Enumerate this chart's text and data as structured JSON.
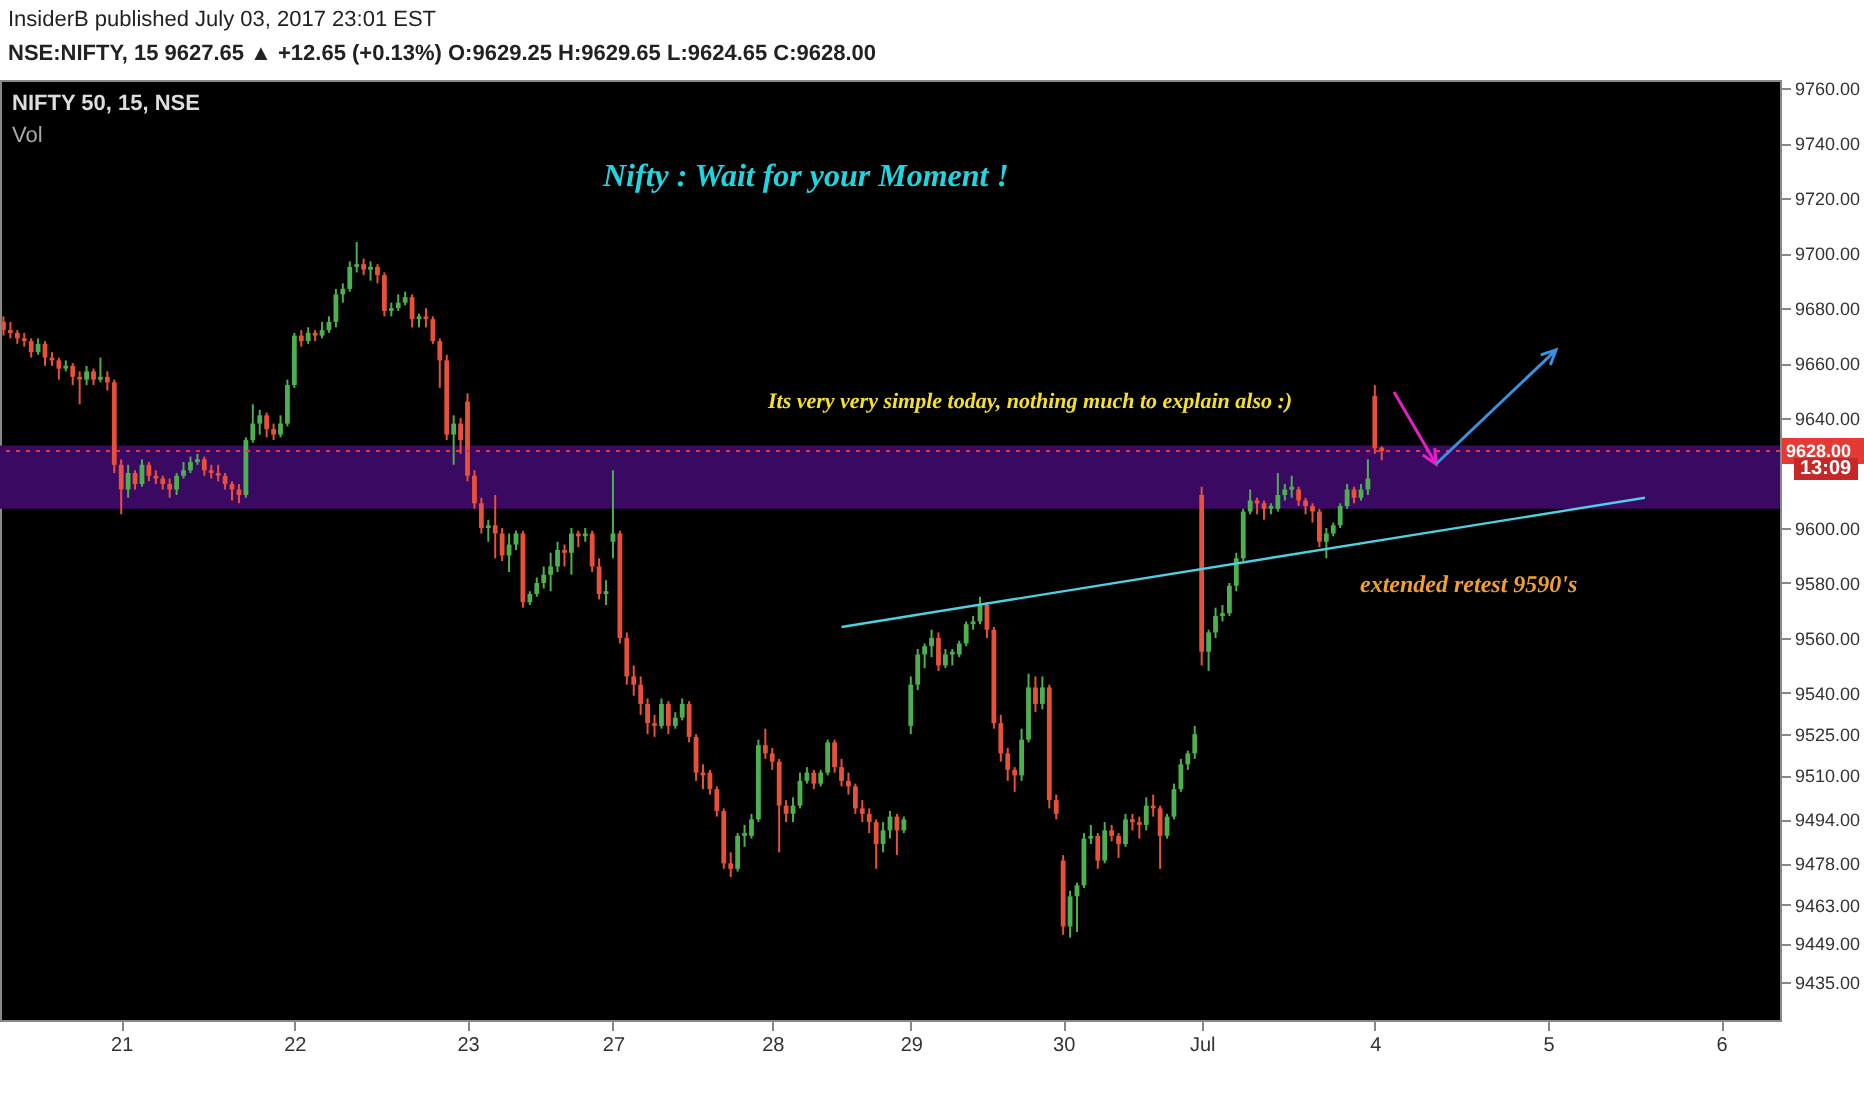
{
  "chart_data": {
    "type": "candlestick",
    "title": "Nifty : Wait for your Moment !",
    "annotations": [
      "InsiderB published July 03, 2017 23:01 EST",
      "NSE:NIFTY, 15  9627.65 ▲ +12.65 (+0.13%) O:9629.25 H:9629.65 L:9624.65 C:9628.00",
      "NIFTY 50, 15, NSE",
      "Vol",
      "Its very very simple today, nothing much to explain also :)",
      "extended retest 9590's",
      "13:09"
    ],
    "categories": [
      null,
      null,
      null,
      null,
      null,
      null,
      null,
      null,
      null,
      null,
      null,
      null,
      null,
      null,
      null,
      null,
      null,
      "21",
      null,
      null,
      null,
      null,
      null,
      null,
      null,
      null,
      null,
      null,
      null,
      null,
      null,
      null,
      null,
      null,
      null,
      null,
      null,
      null,
      null,
      null,
      null,
      null,
      "22",
      null,
      null,
      null,
      null,
      null,
      null,
      null,
      null,
      null,
      null,
      null,
      null,
      null,
      null,
      null,
      null,
      null,
      null,
      null,
      null,
      null,
      null,
      null,
      null,
      "23",
      null,
      null,
      null,
      null,
      null,
      null,
      null,
      null,
      null,
      null,
      null,
      null,
      null,
      null,
      null,
      null,
      null,
      null,
      null,
      null,
      "27",
      null,
      null,
      null,
      null,
      null,
      null,
      null,
      null,
      null,
      null,
      null,
      null,
      null,
      null,
      null,
      null,
      null,
      null,
      null,
      null,
      null,
      null,
      "28",
      null,
      null,
      null,
      null,
      null,
      null,
      null,
      null,
      null,
      null,
      null,
      null,
      null,
      null,
      null,
      null,
      null,
      null,
      null,
      "29",
      null,
      null,
      null,
      null,
      null,
      null,
      null,
      null,
      null,
      null,
      null,
      null,
      null,
      null,
      null,
      null,
      null,
      null,
      null,
      null,
      null,
      "30",
      null,
      null,
      null,
      null,
      null,
      null,
      null,
      null,
      null,
      null,
      null,
      null,
      null,
      null,
      null,
      null,
      null,
      null,
      null,
      "Jul",
      null,
      null,
      null,
      null,
      null,
      null,
      null,
      null,
      null,
      null,
      null,
      null,
      null,
      null,
      null,
      null,
      null,
      null,
      null,
      null,
      null,
      null,
      null,
      null,
      "4",
      null,
      null,
      null,
      null,
      null,
      null,
      null,
      null,
      null,
      null,
      null,
      null,
      null,
      null,
      null,
      null,
      null,
      null,
      null,
      null,
      null,
      null,
      null,
      null,
      "5",
      null,
      null,
      null,
      null,
      null,
      null,
      null,
      null,
      null,
      null,
      null,
      null,
      null,
      null,
      null,
      null,
      null,
      null,
      null,
      null,
      null,
      null,
      null,
      null,
      "6",
      null,
      null,
      null,
      null,
      null,
      null,
      null,
      null
    ],
    "ohlc": [
      [
        9675,
        9677,
        9670,
        9672
      ],
      [
        9672,
        9675,
        9669,
        9671
      ],
      [
        9671,
        9672,
        9667,
        9669
      ],
      [
        9669,
        9671,
        9666,
        9668
      ],
      [
        9668,
        9669,
        9662,
        9664
      ],
      [
        9664,
        9669,
        9663,
        9667
      ],
      [
        9667,
        9668,
        9659,
        9662
      ],
      [
        9662,
        9664,
        9659,
        9661
      ],
      [
        9661,
        9662,
        9654,
        9658
      ],
      [
        9658,
        9661,
        9657,
        9659
      ],
      [
        9659,
        9660,
        9652,
        9655
      ],
      [
        9655,
        9657,
        9645,
        9654
      ],
      [
        9654,
        9659,
        9652,
        9657
      ],
      [
        9657,
        9658,
        9652,
        9654
      ],
      [
        9654,
        9662,
        9653,
        9655
      ],
      [
        9655,
        9657,
        9650,
        9653
      ],
      [
        9653,
        9654,
        9620,
        9623
      ],
      [
        9623,
        9625,
        9605,
        9614
      ],
      [
        9614,
        9623,
        9611,
        9620
      ],
      [
        9620,
        9621,
        9614,
        9616
      ],
      [
        9616,
        9625,
        9615,
        9623
      ],
      [
        9623,
        9624,
        9617,
        9619
      ],
      [
        9619,
        9621,
        9616,
        9618
      ],
      [
        9618,
        9619,
        9614,
        9616
      ],
      [
        9616,
        9618,
        9611,
        9614
      ],
      [
        9614,
        9620,
        9612,
        9619
      ],
      [
        9619,
        9624,
        9618,
        9621
      ],
      [
        9621,
        9626,
        9620,
        9624
      ],
      [
        9624,
        9627,
        9623,
        9625
      ],
      [
        9625,
        9626,
        9619,
        9621
      ],
      [
        9621,
        9623,
        9618,
        9620
      ],
      [
        9620,
        9623,
        9617,
        9619
      ],
      [
        9619,
        9620,
        9614,
        9616
      ],
      [
        9616,
        9617,
        9610,
        9614
      ],
      [
        9614,
        9616,
        9609,
        9612
      ],
      [
        9612,
        9633,
        9611,
        9632
      ],
      [
        9632,
        9645,
        9631,
        9638
      ],
      [
        9638,
        9643,
        9634,
        9641
      ],
      [
        9641,
        9642,
        9633,
        9636
      ],
      [
        9636,
        9638,
        9632,
        9634
      ],
      [
        9634,
        9641,
        9633,
        9638
      ],
      [
        9638,
        9654,
        9637,
        9652
      ],
      [
        9652,
        9671,
        9651,
        9670
      ],
      [
        9670,
        9672,
        9666,
        9668
      ],
      [
        9668,
        9673,
        9667,
        9671
      ],
      [
        9671,
        9672,
        9668,
        9670
      ],
      [
        9670,
        9675,
        9669,
        9672
      ],
      [
        9672,
        9677,
        9671,
        9675
      ],
      [
        9675,
        9687,
        9673,
        9685
      ],
      [
        9685,
        9689,
        9682,
        9687
      ],
      [
        9687,
        9697,
        9686,
        9695
      ],
      [
        9695,
        9704,
        9693,
        9696
      ],
      [
        9696,
        9698,
        9692,
        9694
      ],
      [
        9694,
        9697,
        9690,
        9695
      ],
      [
        9695,
        9696,
        9689,
        9692
      ],
      [
        9692,
        9693,
        9677,
        9679
      ],
      [
        9679,
        9682,
        9677,
        9680
      ],
      [
        9680,
        9685,
        9679,
        9682
      ],
      [
        9682,
        9686,
        9681,
        9684
      ],
      [
        9684,
        9685,
        9673,
        9676
      ],
      [
        9676,
        9678,
        9673,
        9677
      ],
      [
        9677,
        9680,
        9673,
        9676
      ],
      [
        9676,
        9677,
        9667,
        9668
      ],
      [
        9668,
        9669,
        9651,
        9661
      ],
      [
        9661,
        9663,
        9632,
        9634
      ],
      [
        9634,
        9641,
        9623,
        9638
      ],
      [
        9638,
        9640,
        9627,
        9632
      ],
      [
        9646,
        9649,
        9617,
        9619
      ],
      [
        9619,
        9621,
        9607,
        9609
      ],
      [
        9609,
        9611,
        9598,
        9600
      ],
      [
        9600,
        9603,
        9595,
        9601
      ],
      [
        9601,
        9612,
        9589,
        9598
      ],
      [
        9598,
        9600,
        9588,
        9590
      ],
      [
        9590,
        9598,
        9584,
        9594
      ],
      [
        9594,
        9599,
        9592,
        9598
      ],
      [
        9598,
        9599,
        9571,
        9573
      ],
      [
        9573,
        9577,
        9572,
        9576
      ],
      [
        9576,
        9582,
        9575,
        9580
      ],
      [
        9580,
        9586,
        9578,
        9583
      ],
      [
        9583,
        9591,
        9577,
        9586
      ],
      [
        9586,
        9595,
        9584,
        9592
      ],
      [
        9592,
        9594,
        9586,
        9591
      ],
      [
        9591,
        9600,
        9583,
        9598
      ],
      [
        9598,
        9599,
        9593,
        9597
      ],
      [
        9597,
        9600,
        9595,
        9598
      ],
      [
        9598,
        9599,
        9584,
        9586
      ],
      [
        9586,
        9589,
        9574,
        9576
      ],
      [
        9576,
        9581,
        9572,
        9577
      ],
      [
        9595,
        9621,
        9589,
        9598
      ],
      [
        9598,
        9599,
        9558,
        9560
      ],
      [
        9560,
        9562,
        9543,
        9546
      ],
      [
        9546,
        9550,
        9539,
        9543
      ],
      [
        9543,
        9546,
        9532,
        9536
      ],
      [
        9536,
        9538,
        9525,
        9529
      ],
      [
        9529,
        9532,
        9524,
        9528
      ],
      [
        9528,
        9538,
        9527,
        9536
      ],
      [
        9536,
        9537,
        9525,
        9528
      ],
      [
        9528,
        9533,
        9527,
        9531
      ],
      [
        9531,
        9538,
        9530,
        9536
      ],
      [
        9536,
        9537,
        9522,
        9524
      ],
      [
        9524,
        9525,
        9508,
        9511
      ],
      [
        9511,
        9514,
        9505,
        9510
      ],
      [
        9511,
        9512,
        9503,
        9505
      ],
      [
        9505,
        9506,
        9495,
        9497
      ],
      [
        9497,
        9498,
        9476,
        9478
      ],
      [
        9478,
        9482,
        9473,
        9476
      ],
      [
        9476,
        9489,
        9475,
        9488
      ],
      [
        9488,
        9492,
        9484,
        9489
      ],
      [
        9488,
        9496,
        9487,
        9494
      ],
      [
        9494,
        9523,
        9493,
        9521
      ],
      [
        9521,
        9527,
        9516,
        9518
      ],
      [
        9518,
        9520,
        9512,
        9515
      ],
      [
        9515,
        9516,
        9482,
        9499
      ],
      [
        9499,
        9501,
        9493,
        9496
      ],
      [
        9496,
        9502,
        9493,
        9499
      ],
      [
        9499,
        9511,
        9498,
        9508
      ],
      [
        9508,
        9513,
        9507,
        9511
      ],
      [
        9511,
        9512,
        9505,
        9507
      ],
      [
        9507,
        9512,
        9506,
        9511
      ],
      [
        9511,
        9523,
        9510,
        9522
      ],
      [
        9522,
        9523,
        9511,
        9513
      ],
      [
        9513,
        9516,
        9506,
        9508
      ],
      [
        9508,
        9511,
        9503,
        9506
      ],
      [
        9506,
        9507,
        9496,
        9498
      ],
      [
        9498,
        9501,
        9493,
        9496
      ],
      [
        9496,
        9498,
        9489,
        9493
      ],
      [
        9493,
        9494,
        9476,
        9485
      ],
      [
        9485,
        9493,
        9482,
        9490
      ],
      [
        9490,
        9497,
        9487,
        9495
      ],
      [
        9495,
        9496,
        9481,
        9490
      ],
      [
        9490,
        9495,
        9489,
        9494
      ],
      [
        9528,
        9546,
        9525,
        9543
      ],
      [
        9543,
        9556,
        9541,
        9554
      ],
      [
        9554,
        9558,
        9549,
        9557
      ],
      [
        9557,
        9563,
        9553,
        9560
      ],
      [
        9560,
        9562,
        9548,
        9550
      ],
      [
        9550,
        9556,
        9549,
        9554
      ],
      [
        9554,
        9556,
        9550,
        9555
      ],
      [
        9554,
        9559,
        9553,
        9558
      ],
      [
        9558,
        9566,
        9557,
        9565
      ],
      [
        9565,
        9568,
        9563,
        9566
      ],
      [
        9566,
        9575,
        9565,
        9572
      ],
      [
        9572,
        9573,
        9560,
        9563
      ],
      [
        9563,
        9564,
        9527,
        9529
      ],
      [
        9529,
        9532,
        9515,
        9518
      ],
      [
        9518,
        9520,
        9508,
        9512
      ],
      [
        9512,
        9513,
        9504,
        9510
      ],
      [
        9510,
        9527,
        9508,
        9523
      ],
      [
        9523,
        9547,
        9522,
        9542
      ],
      [
        9542,
        9546,
        9533,
        9536
      ],
      [
        9536,
        9546,
        9534,
        9542
      ],
      [
        9542,
        9543,
        9498,
        9501
      ],
      [
        9501,
        9503,
        9494,
        9496
      ],
      [
        9479,
        9481,
        9452,
        9455
      ],
      [
        9455,
        9468,
        9451,
        9466
      ],
      [
        9466,
        9471,
        9453,
        9470
      ],
      [
        9470,
        9489,
        9469,
        9487
      ],
      [
        9487,
        9492,
        9485,
        9488
      ],
      [
        9488,
        9489,
        9476,
        9479
      ],
      [
        9479,
        9493,
        9478,
        9490
      ],
      [
        9490,
        9492,
        9486,
        9488
      ],
      [
        9488,
        9489,
        9480,
        9485
      ],
      [
        9485,
        9496,
        9484,
        9494
      ],
      [
        9494,
        9496,
        9490,
        9493
      ],
      [
        9493,
        9495,
        9487,
        9492
      ],
      [
        9492,
        9502,
        9490,
        9499
      ],
      [
        9499,
        9503,
        9495,
        9498
      ],
      [
        9498,
        9499,
        9476,
        9488
      ],
      [
        9488,
        9496,
        9487,
        9495
      ],
      [
        9495,
        9507,
        9494,
        9505
      ],
      [
        9505,
        9516,
        9504,
        9514
      ],
      [
        9514,
        9519,
        9512,
        9518
      ],
      [
        9518,
        9528,
        9516,
        9525
      ],
      [
        9612,
        9615,
        9550,
        9555
      ],
      [
        9555,
        9563,
        9548,
        9562
      ],
      [
        9562,
        9571,
        9560,
        9568
      ],
      [
        9568,
        9572,
        9566,
        9569
      ],
      [
        9569,
        9580,
        9568,
        9579
      ],
      [
        9579,
        9591,
        9577,
        9589
      ],
      [
        9589,
        9607,
        9588,
        9606
      ],
      [
        9606,
        9614,
        9605,
        9610
      ],
      [
        9610,
        9611,
        9605,
        9609
      ],
      [
        9609,
        9610,
        9603,
        9607
      ],
      [
        9607,
        9609,
        9605,
        9608
      ],
      [
        9607,
        9620,
        9606,
        9612
      ],
      [
        9612,
        9616,
        9610,
        9614
      ],
      [
        9614,
        9619,
        9611,
        9615
      ],
      [
        9614,
        9615,
        9608,
        9610
      ],
      [
        9610,
        9611,
        9605,
        9608
      ],
      [
        9608,
        9609,
        9602,
        9606
      ],
      [
        9606,
        9607,
        9593,
        9595
      ],
      [
        9595,
        9600,
        9589,
        9598
      ],
      [
        9598,
        9602,
        9597,
        9601
      ],
      [
        9601,
        9609,
        9600,
        9608
      ],
      [
        9608,
        9616,
        9607,
        9614
      ],
      [
        9614,
        9615,
        9609,
        9611
      ],
      [
        9611,
        9616,
        9610,
        9614
      ],
      [
        9614,
        9625,
        9612,
        9618
      ],
      [
        9648,
        9652,
        9627,
        9629
      ],
      [
        9629.25,
        9629.65,
        9624.65,
        9628
      ],
      null,
      null,
      null,
      null,
      null,
      null,
      null,
      null,
      null,
      null,
      null,
      null,
      null,
      null,
      null,
      null,
      null,
      null,
      null,
      null,
      null,
      null,
      null,
      null,
      null,
      null,
      null,
      null,
      null,
      null,
      null,
      null,
      null,
      null,
      null,
      null,
      null,
      null,
      null,
      null,
      null,
      null,
      null,
      null,
      null,
      null,
      null,
      null,
      null,
      null,
      null,
      null,
      null,
      null,
      null,
      null,
      null
    ],
    "series": [
      {
        "type": "line",
        "color": "#4dd0e1",
        "values": [
          null,
          null,
          null,
          null,
          null,
          null,
          null,
          null,
          null,
          null,
          null,
          null,
          null,
          null,
          null,
          null,
          null,
          null,
          null,
          null,
          null,
          null,
          null,
          null,
          null,
          null,
          null,
          null,
          null,
          null,
          null,
          null,
          null,
          null,
          null,
          null,
          null,
          null,
          null,
          null,
          null,
          null,
          null,
          null,
          null,
          null,
          null,
          null,
          null,
          null,
          null,
          null,
          null,
          null,
          null,
          null,
          null,
          null,
          null,
          null,
          null,
          null,
          null,
          null,
          null,
          null,
          null,
          null,
          null,
          null,
          null,
          null,
          null,
          null,
          null,
          null,
          null,
          null,
          null,
          null,
          null,
          null,
          null,
          null,
          null,
          null,
          null,
          null,
          null,
          null,
          null,
          null,
          null,
          null,
          null,
          null,
          null,
          null,
          null,
          null,
          null,
          null,
          null,
          null,
          null,
          null,
          null,
          null,
          null,
          null,
          null,
          null,
          null,
          null,
          null,
          null,
          null,
          null,
          null,
          null,
          null,
          9564,
          null,
          null,
          null,
          null,
          null,
          null,
          null,
          null,
          null,
          null,
          null,
          null,
          null,
          null,
          null,
          null,
          null,
          null,
          null,
          null,
          null,
          null,
          null,
          null,
          null,
          null,
          null,
          null,
          null,
          null,
          null,
          null,
          null,
          null,
          null,
          null,
          null,
          null,
          null,
          null,
          null,
          null,
          null,
          null,
          null,
          null,
          null,
          null,
          null,
          null,
          null,
          null,
          null,
          null,
          null,
          null,
          null,
          null,
          null,
          null,
          null,
          null,
          null,
          null,
          null,
          null,
          null,
          null,
          null,
          null,
          null,
          null,
          null,
          null,
          null,
          null,
          null,
          null,
          null,
          null,
          null,
          null,
          null,
          null,
          null,
          null,
          null,
          null,
          null,
          null,
          null,
          null,
          null,
          null,
          null,
          null,
          null,
          null,
          null,
          null,
          null,
          null,
          null,
          null,
          null,
          null,
          null,
          null,
          null,
          null,
          null,
          null,
          null,
          null,
          null,
          9611,
          null,
          null,
          null,
          null,
          null,
          null,
          null,
          null,
          null,
          null,
          null,
          null,
          null,
          null,
          null,
          null,
          null,
          null,
          null
        ]
      }
    ],
    "ylim": [
      9421,
      9763
    ],
    "yticks": [
      {
        "value": 9760,
        "label": "9760.00"
      },
      {
        "value": 9740,
        "label": "9740.00"
      },
      {
        "value": 9720,
        "label": "9720.00"
      },
      {
        "value": 9700,
        "label": "9700.00"
      },
      {
        "value": 9680,
        "label": "9680.00"
      },
      {
        "value": 9660,
        "label": "9660.00"
      },
      {
        "value": 9640,
        "label": "9640.00"
      },
      {
        "value": 9600,
        "label": "9600.00"
      },
      {
        "value": 9580,
        "label": "9580.00"
      },
      {
        "value": 9560,
        "label": "9560.00"
      },
      {
        "value": 9540,
        "label": "9540.00"
      },
      {
        "value": 9525,
        "label": "9525.00"
      },
      {
        "value": 9510,
        "label": "9510.00"
      },
      {
        "value": 9494,
        "label": "9494.00"
      },
      {
        "value": 9478,
        "label": "9478.00"
      },
      {
        "value": 9463,
        "label": "9463.00"
      },
      {
        "value": 9449,
        "label": "9449.00"
      },
      {
        "value": 9435,
        "label": "9435.00"
      }
    ],
    "ref_lines": [
      {
        "axis": "y",
        "value": 9628,
        "label": "9628.00",
        "color": "#e53935",
        "line_style": "dotted"
      }
    ],
    "bands": [
      {
        "axis": "y",
        "from": 9607,
        "to": 9630,
        "color": "#3a0a63"
      }
    ]
  }
}
